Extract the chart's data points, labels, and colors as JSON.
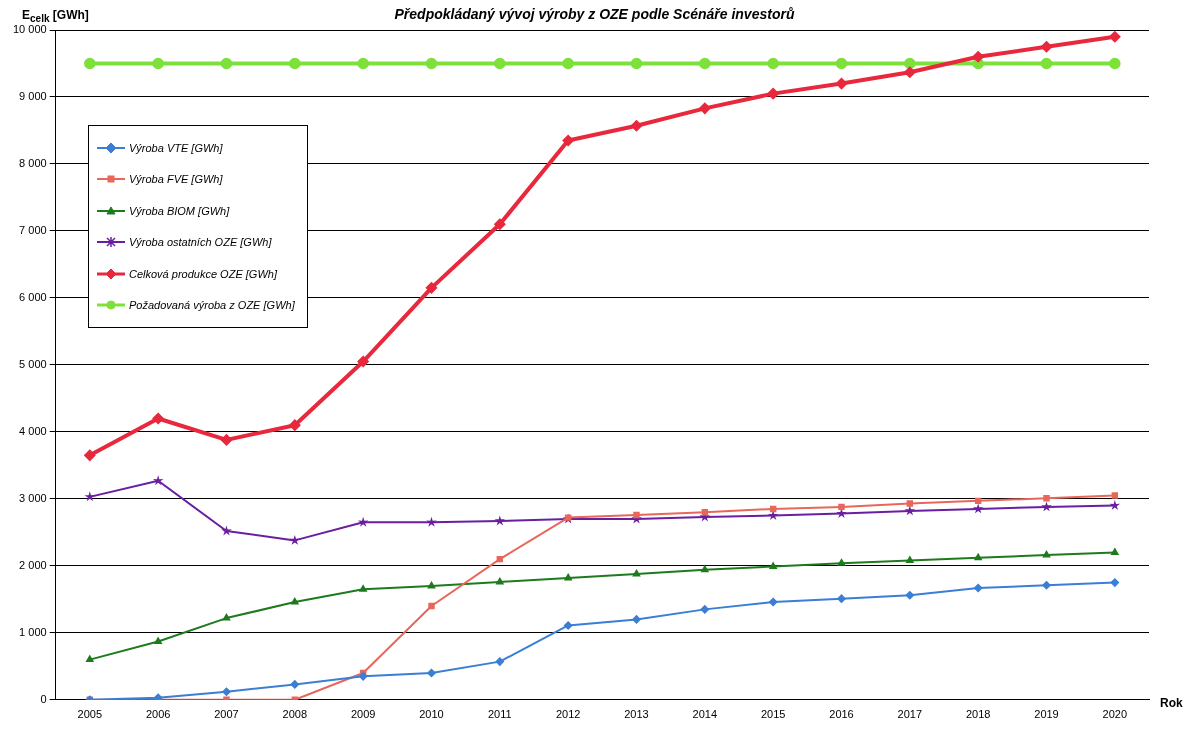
{
  "chart_data": {
    "type": "line",
    "title": "Předpokládaný vývoj výroby z OZE podle Scénáře investorů",
    "xlabel": "Rok",
    "ylabel": "E$_{celk}$ [GWh]",
    "categories": [
      "2005",
      "2006",
      "2007",
      "2008",
      "2009",
      "2010",
      "2011",
      "2012",
      "2013",
      "2014",
      "2015",
      "2016",
      "2017",
      "2018",
      "2019",
      "2020"
    ],
    "ylim": [
      0,
      10000
    ],
    "yticks": [
      0,
      {
        "value": 1000,
        "label": "1 000"
      },
      {
        "value": 2000,
        "label": "2 000"
      },
      {
        "value": 3000,
        "label": "3 000"
      },
      {
        "value": 4000,
        "label": "4 000"
      },
      {
        "value": 5000,
        "label": "5 000"
      },
      {
        "value": 6000,
        "label": "6 000"
      },
      {
        "value": 7000,
        "label": "7 000"
      },
      {
        "value": 8000,
        "label": "8 000"
      },
      {
        "value": 9000,
        "label": "9 000"
      },
      {
        "value": 10000,
        "label": "10 000"
      }
    ],
    "grid": "y",
    "legend": "top left",
    "line_style": "solid",
    "series": [
      {
        "name": "Výroba VTE [GWh]",
        "color": "#3a7fd5",
        "marker": "diamond",
        "values": [
          0,
          30,
          120,
          230,
          350,
          400,
          570,
          1110,
          1200,
          1350,
          1460,
          1510,
          1560,
          1670,
          1710,
          1750
        ]
      },
      {
        "name": "Výroba FVE [GWh]",
        "color": "#e8675a",
        "marker": "square",
        "values": [
          0,
          0,
          0,
          0,
          400,
          1400,
          2100,
          2720,
          2760,
          2800,
          2850,
          2880,
          2930,
          2970,
          3010,
          3050
        ]
      },
      {
        "name": "Výroba BIOM [GWh]",
        "color": "#1e7a1e",
        "marker": "triangle",
        "values": [
          600,
          870,
          1220,
          1460,
          1650,
          1700,
          1760,
          1820,
          1880,
          1940,
          1990,
          2040,
          2080,
          2120,
          2160,
          2200
        ]
      },
      {
        "name": "Výroba ostatních OZE [GWh]",
        "color": "#6a1fa0",
        "marker": "star",
        "values": [
          3030,
          3270,
          2520,
          2380,
          2650,
          2650,
          2670,
          2700,
          2700,
          2730,
          2750,
          2780,
          2820,
          2850,
          2880,
          2900
        ]
      },
      {
        "name": "Celková produkce OZE [GWh]",
        "color": "#e8283c",
        "marker": "diamond",
        "values": [
          3650,
          4200,
          3880,
          4100,
          5050,
          6150,
          7100,
          8350,
          8570,
          8830,
          9050,
          9200,
          9370,
          9600,
          9750,
          9900
        ]
      },
      {
        "name": "Požadovaná výroba z OZE [GWh]",
        "color": "#7ee03a",
        "marker": "circle",
        "values": [
          9500,
          9500,
          9500,
          9500,
          9500,
          9500,
          9500,
          9500,
          9500,
          9500,
          9500,
          9500,
          9500,
          9500,
          9500,
          9500
        ]
      }
    ]
  }
}
